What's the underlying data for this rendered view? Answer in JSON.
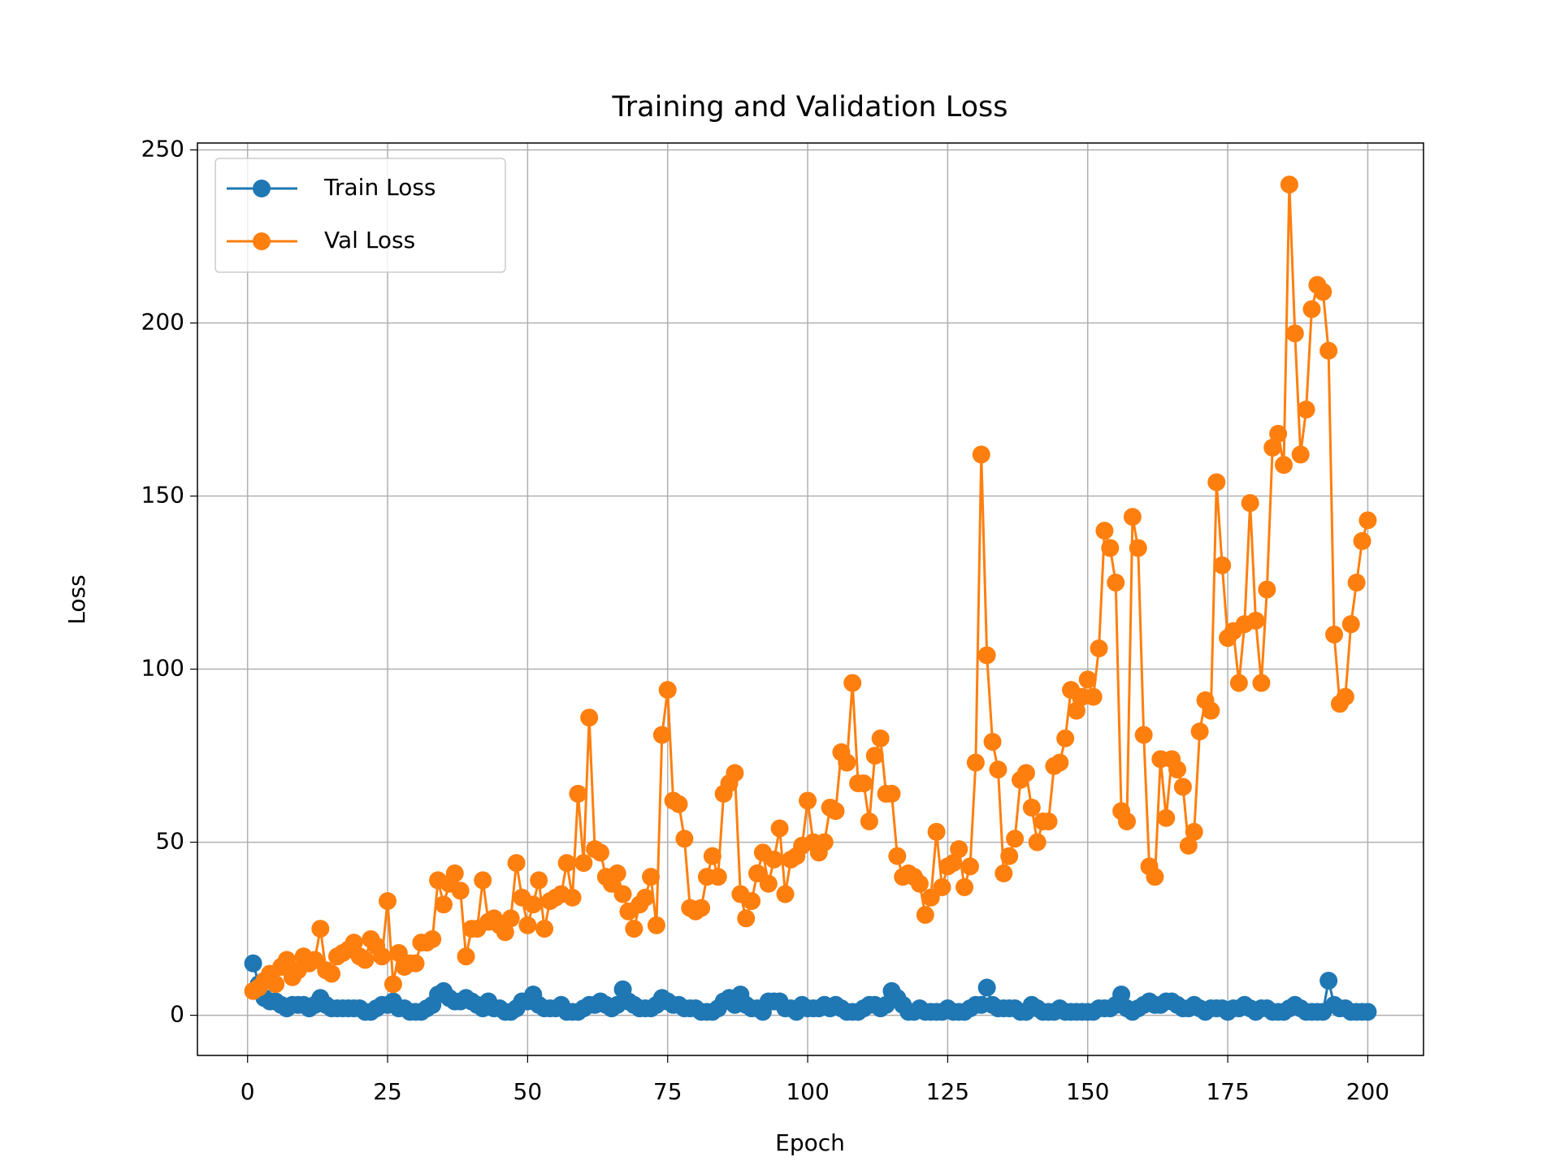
{
  "chart_data": {
    "type": "line",
    "title": "Training and Validation Loss",
    "x_label": "Epoch",
    "y_label": "Loss",
    "x": [
      1,
      2,
      3,
      4,
      5,
      6,
      7,
      8,
      9,
      10,
      11,
      12,
      13,
      14,
      15,
      16,
      17,
      18,
      19,
      20,
      21,
      22,
      23,
      24,
      25,
      26,
      27,
      28,
      29,
      30,
      31,
      32,
      33,
      34,
      35,
      36,
      37,
      38,
      39,
      40,
      41,
      42,
      43,
      44,
      45,
      46,
      47,
      48,
      49,
      50,
      51,
      52,
      53,
      54,
      55,
      56,
      57,
      58,
      59,
      60,
      61,
      62,
      63,
      64,
      65,
      66,
      67,
      68,
      69,
      70,
      71,
      72,
      73,
      74,
      75,
      76,
      77,
      78,
      79,
      80,
      81,
      82,
      83,
      84,
      85,
      86,
      87,
      88,
      89,
      90,
      91,
      92,
      93,
      94,
      95,
      96,
      97,
      98,
      99,
      100,
      101,
      102,
      103,
      104,
      105,
      106,
      107,
      108,
      109,
      110,
      111,
      112,
      113,
      114,
      115,
      116,
      117,
      118,
      119,
      120,
      121,
      122,
      123,
      124,
      125,
      126,
      127,
      128,
      129,
      130,
      131,
      132,
      133,
      134,
      135,
      136,
      137,
      138,
      139,
      140,
      141,
      142,
      143,
      144,
      145,
      146,
      147,
      148,
      149,
      150,
      151,
      152,
      153,
      154,
      155,
      156,
      157,
      158,
      159,
      160,
      161,
      162,
      163,
      164,
      165,
      166,
      167,
      168,
      169,
      170,
      171,
      172,
      173,
      174,
      175,
      176,
      177,
      178,
      179,
      180,
      181,
      182,
      183,
      184,
      185,
      186,
      187,
      188,
      189,
      190,
      191,
      192,
      193,
      194,
      195,
      196,
      197,
      198,
      199,
      200
    ],
    "series": [
      {
        "name": "Train Loss",
        "color": "#1f77b4",
        "values": [
          15,
          9,
          5,
          4,
          4,
          3,
          2,
          3,
          3,
          3,
          2,
          3,
          5,
          3,
          2,
          2,
          2,
          2,
          2,
          2,
          1,
          1,
          2,
          3,
          3,
          4,
          2,
          2,
          1,
          1,
          1,
          2,
          3,
          6,
          7,
          5,
          4,
          4,
          5,
          4,
          3,
          2,
          4,
          2,
          2,
          1,
          1,
          2,
          4,
          4,
          6,
          3,
          2,
          2,
          2,
          3,
          1,
          1,
          1,
          2,
          3,
          3,
          4,
          3,
          2,
          3,
          7.5,
          4,
          3,
          2,
          2,
          2,
          3,
          5,
          4,
          3,
          3,
          2,
          2,
          2,
          1,
          1,
          1,
          2,
          4,
          5,
          3,
          6,
          3,
          2,
          2,
          1,
          4,
          4,
          4,
          2,
          2,
          1,
          3,
          2,
          2,
          2,
          3,
          2,
          3,
          2,
          1,
          1,
          1,
          2,
          3,
          3,
          2,
          3,
          7,
          5,
          3,
          1,
          1,
          2,
          1,
          1,
          1,
          1,
          2,
          1,
          1,
          1,
          2,
          3,
          3,
          8,
          3,
          2,
          2,
          2,
          2,
          1,
          1,
          3,
          2,
          1,
          1,
          1,
          2,
          1,
          1,
          1,
          1,
          1,
          1,
          2,
          2,
          2,
          3,
          6,
          2,
          1,
          2,
          3,
          4,
          3,
          3,
          4,
          4,
          3,
          2,
          2,
          3,
          2,
          1,
          2,
          2,
          2,
          1,
          2,
          2,
          3,
          2,
          1,
          2,
          2,
          1,
          1,
          1,
          2,
          3,
          2,
          1,
          1,
          1,
          1,
          10,
          3,
          2,
          2,
          1,
          1,
          1,
          1
        ]
      },
      {
        "name": "Val Loss",
        "color": "#ff7f0e",
        "values": [
          7,
          8,
          10,
          12,
          9,
          14,
          16,
          11,
          13,
          17,
          15,
          16,
          25,
          13,
          12,
          17,
          18,
          19,
          21,
          17,
          16,
          22,
          20,
          17,
          33,
          9,
          18,
          14,
          15,
          15,
          21,
          21,
          22,
          39,
          32,
          38,
          41,
          36,
          17,
          25,
          25,
          39,
          27,
          28,
          26,
          24,
          28,
          44,
          34,
          26,
          32,
          39,
          25,
          33,
          34,
          35,
          44,
          34,
          64,
          44,
          86,
          48,
          47,
          40,
          38,
          41,
          35,
          30,
          25,
          32,
          34,
          40,
          26,
          81,
          94,
          62,
          61,
          51,
          31,
          30,
          31,
          40,
          46,
          40,
          64,
          67,
          70,
          35,
          28,
          33,
          41,
          47,
          38,
          45,
          54,
          35,
          45,
          46,
          49,
          62,
          50,
          47,
          50,
          60,
          59,
          76,
          73,
          96,
          67,
          67,
          56,
          75,
          80,
          64,
          64,
          46,
          40,
          41,
          40,
          38,
          29,
          34,
          53,
          37,
          43,
          44,
          48,
          37,
          43,
          73,
          162,
          104,
          79,
          71,
          41,
          46,
          51,
          68,
          70,
          60,
          50,
          56,
          56,
          72,
          73,
          80,
          94,
          88,
          92,
          97,
          92,
          106,
          140,
          135,
          125,
          59,
          56,
          144,
          135,
          81,
          43,
          40,
          74,
          57,
          74,
          71,
          66,
          49,
          53,
          82,
          91,
          88,
          154,
          130,
          109,
          111,
          96,
          113,
          148,
          114,
          96,
          123,
          164,
          168,
          159,
          240,
          197,
          162,
          175,
          204,
          211,
          209,
          192,
          110,
          90,
          92,
          113,
          125,
          137,
          143
        ]
      }
    ],
    "xlim": [
      -8.95,
      209.95
    ],
    "ylim": [
      -11.6,
      252
    ],
    "xticks": [
      0,
      25,
      50,
      75,
      100,
      125,
      150,
      175,
      200
    ],
    "yticks": [
      0,
      50,
      100,
      150,
      200,
      250
    ],
    "grid": true,
    "legend": "upper-left",
    "marker": "o"
  }
}
